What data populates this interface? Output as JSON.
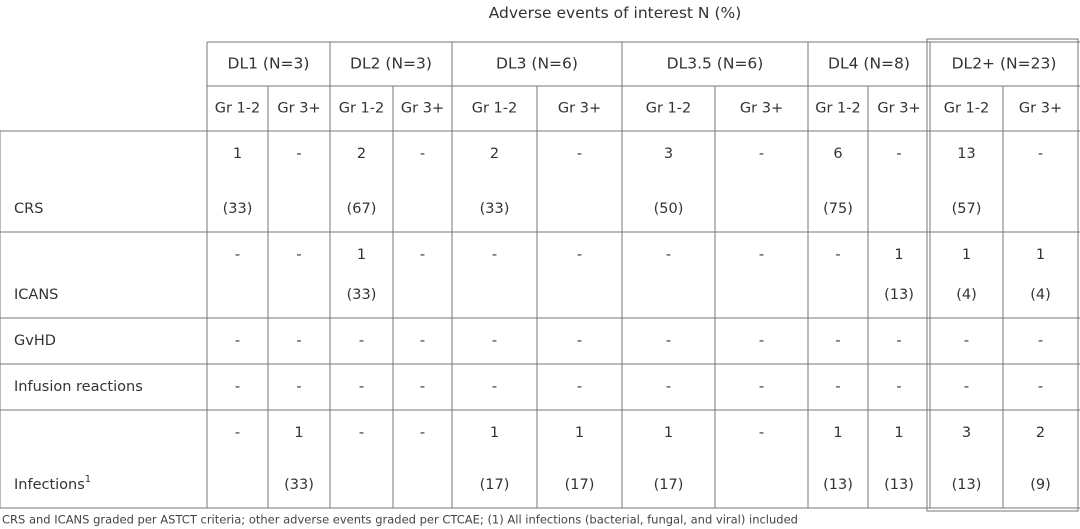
{
  "title": {
    "main": "Adverse events of interest",
    "suffix": "N (%)"
  },
  "table": {
    "groups": [
      "DL1 (N=3)",
      "DL2 (N=3)",
      "DL3 (N=6)",
      "DL3.5 (N=6)",
      "DL4 (N=8)",
      "DL2+ (N=23)"
    ],
    "subheaders": [
      "Gr 1-2",
      "Gr 3+",
      "Gr 1-2",
      "Gr 3+",
      "Gr 1-2",
      "Gr 3+",
      "Gr 1-2",
      "Gr 3+",
      "Gr 1-2",
      "Gr 3+",
      "Gr 1-2",
      "Gr 3+"
    ],
    "rows": [
      {
        "label": "CRS",
        "cells": [
          [
            "1",
            "(33)"
          ],
          [
            "-"
          ],
          [
            "2",
            "(67)"
          ],
          [
            "-"
          ],
          [
            "2",
            "(33)"
          ],
          [
            "-"
          ],
          [
            "3",
            "(50)"
          ],
          [
            "-"
          ],
          [
            "6",
            "(75)"
          ],
          [
            "-"
          ],
          [
            "13",
            "(57)"
          ],
          [
            "-"
          ]
        ]
      },
      {
        "label": "ICANS",
        "cells": [
          [
            "-"
          ],
          [
            "-"
          ],
          [
            "1",
            "(33)"
          ],
          [
            "-"
          ],
          [
            "-"
          ],
          [
            "-"
          ],
          [
            "-"
          ],
          [
            "-"
          ],
          [
            "-"
          ],
          [
            "1",
            "(13)"
          ],
          [
            "1",
            "(4)"
          ],
          [
            "1",
            "(4)"
          ]
        ]
      },
      {
        "label": "GvHD",
        "cells": [
          [
            "-"
          ],
          [
            "-"
          ],
          [
            "-"
          ],
          [
            "-"
          ],
          [
            "-"
          ],
          [
            "-"
          ],
          [
            "-"
          ],
          [
            "-"
          ],
          [
            "-"
          ],
          [
            "-"
          ],
          [
            "-"
          ],
          [
            "-"
          ]
        ]
      },
      {
        "label": "Infusion reactions",
        "cells": [
          [
            "-"
          ],
          [
            "-"
          ],
          [
            "-"
          ],
          [
            "-"
          ],
          [
            "-"
          ],
          [
            "-"
          ],
          [
            "-"
          ],
          [
            "-"
          ],
          [
            "-"
          ],
          [
            "-"
          ],
          [
            "-"
          ],
          [
            "-"
          ]
        ]
      },
      {
        "label": "Infections",
        "label_sup": "1",
        "cells": [
          [
            "-"
          ],
          [
            "1",
            "(33)"
          ],
          [
            "-"
          ],
          [
            "-"
          ],
          [
            "1",
            "(17)"
          ],
          [
            "1",
            "(17)"
          ],
          [
            "1",
            "(17)"
          ],
          [
            "-"
          ],
          [
            "1",
            "(13)"
          ],
          [
            "1",
            "(13)"
          ],
          [
            "3",
            "(13)"
          ],
          [
            "2",
            "(9)"
          ]
        ]
      }
    ]
  },
  "footnote": "CRS and ICANS graded per ASTCT criteria; other adverse events graded per CTCAE; (1) All infections (bacterial, fungal, and viral) included"
}
